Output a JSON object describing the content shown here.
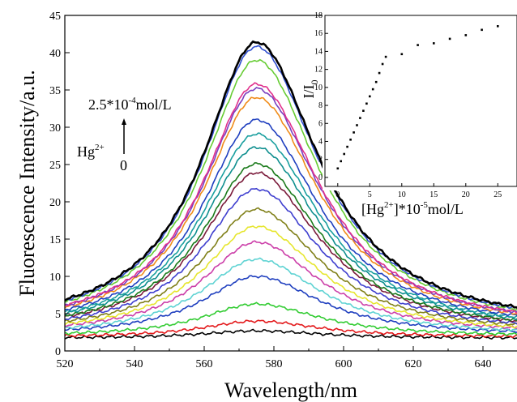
{
  "chart_data": [
    {
      "type": "line",
      "xlabel": "Wavelength/nm",
      "ylabel": "Fluorescence Intensity/a.u.",
      "xlim": [
        520,
        650
      ],
      "ylim": [
        0,
        45
      ],
      "xticks": [
        "520",
        "540",
        "560",
        "580",
        "600",
        "620",
        "640"
      ],
      "yticks": [
        "0",
        "5",
        "10",
        "15",
        "20",
        "25",
        "30",
        "35",
        "40",
        "45"
      ],
      "peak_wavelength": 575,
      "annotation": {
        "top_label_main": "2.5*10",
        "top_label_exp": "-4",
        "top_label_unit": "mol/L",
        "ion_label": "Hg",
        "ion_charge": "2+",
        "start_label": "0"
      },
      "series": [
        {
          "color": "#000000",
          "baseline": 1.7,
          "peak": 2.7
        },
        {
          "color": "#e31a1c",
          "baseline": 1.8,
          "peak": 4.0
        },
        {
          "color": "#33cc33",
          "baseline": 1.9,
          "peak": 6.3
        },
        {
          "color": "#1f3fbf",
          "baseline": 2.0,
          "peak": 10.0
        },
        {
          "color": "#5fd3d3",
          "baseline": 2.0,
          "peak": 12.3
        },
        {
          "color": "#cc3fa9",
          "baseline": 2.1,
          "peak": 14.6
        },
        {
          "color": "#e6e62e",
          "baseline": 2.1,
          "peak": 16.7
        },
        {
          "color": "#808019",
          "baseline": 2.2,
          "peak": 19.0
        },
        {
          "color": "#3f3fcf",
          "baseline": 2.2,
          "peak": 21.7
        },
        {
          "color": "#7a1a3a",
          "baseline": 2.3,
          "peak": 23.9
        },
        {
          "color": "#1a7a1a",
          "baseline": 2.3,
          "peak": 25.1
        },
        {
          "color": "#0f8f8f",
          "baseline": 2.4,
          "peak": 27.3
        },
        {
          "color": "#1a9f9f",
          "baseline": 2.4,
          "peak": 29.1
        },
        {
          "color": "#1f3fbf",
          "baseline": 2.5,
          "peak": 31.0
        },
        {
          "color": "#f08c1a",
          "baseline": 2.5,
          "peak": 34.0
        },
        {
          "color": "#7a3fbf",
          "baseline": 2.6,
          "peak": 35.2
        },
        {
          "color": "#e0308c",
          "baseline": 2.6,
          "peak": 35.8
        },
        {
          "color": "#66cc33",
          "baseline": 2.7,
          "peak": 39.0
        },
        {
          "color": "#2f4fcf",
          "baseline": 2.7,
          "peak": 40.8
        },
        {
          "color": "#000000",
          "baseline": 2.8,
          "peak": 41.4,
          "bold": true
        }
      ]
    },
    {
      "type": "scatter",
      "xlabel_main": "[Hg",
      "xlabel_charge": "2+",
      "xlabel_mid": "]*10",
      "xlabel_exp": "-5",
      "xlabel_unit": "mol/L",
      "ylabel_main": "I/I",
      "ylabel_sub": "0",
      "xlim": [
        -2,
        28
      ],
      "ylim": [
        -1,
        18
      ],
      "xticks": [
        "0",
        "5",
        "10",
        "15",
        "20",
        "25"
      ],
      "yticks": [
        "0",
        "2",
        "4",
        "6",
        "8",
        "10",
        "12",
        "14",
        "16",
        "18"
      ],
      "x": [
        0,
        0.5,
        1,
        1.5,
        2,
        2.5,
        3,
        3.5,
        4,
        4.5,
        5,
        5.5,
        6,
        6.5,
        7,
        7.5,
        10,
        12.5,
        15,
        17.5,
        20,
        22.5,
        25
      ],
      "y": [
        1.0,
        1.8,
        2.6,
        3.4,
        4.2,
        5.0,
        5.8,
        6.6,
        7.4,
        8.2,
        9.0,
        9.8,
        10.6,
        11.6,
        12.6,
        13.4,
        13.7,
        14.7,
        14.9,
        15.4,
        15.8,
        16.4,
        16.8
      ]
    }
  ]
}
